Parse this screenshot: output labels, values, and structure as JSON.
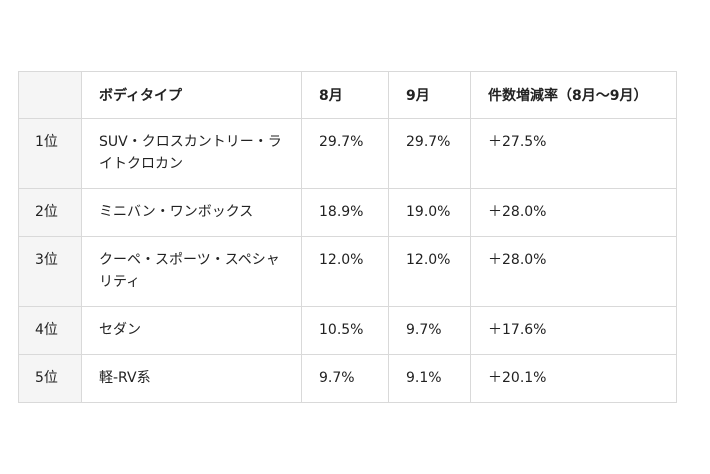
{
  "table": {
    "headers": {
      "rank": "",
      "body_type": "ボディタイプ",
      "aug": "8月",
      "sep": "9月",
      "rate": "件数増減率（8月〜9月）"
    },
    "rows": [
      {
        "rank": "1位",
        "body_type": "SUV・クロスカントリー・ライトクロカン",
        "aug": "29.7%",
        "sep": "29.7%",
        "rate": "＋27.5%"
      },
      {
        "rank": "2位",
        "body_type": "ミニバン・ワンボックス",
        "aug": "18.9%",
        "sep": "19.0%",
        "rate": "＋28.0%"
      },
      {
        "rank": "3位",
        "body_type": "クーペ・スポーツ・スペシャリティ",
        "aug": "12.0%",
        "sep": "12.0%",
        "rate": "＋28.0%"
      },
      {
        "rank": "4位",
        "body_type": "セダン",
        "aug": "10.5%",
        "sep": "9.7%",
        "rate": "＋17.6%"
      },
      {
        "rank": "5位",
        "body_type": "軽-RV系",
        "aug": "9.7%",
        "sep": "9.1%",
        "rate": "＋20.1%"
      }
    ]
  }
}
